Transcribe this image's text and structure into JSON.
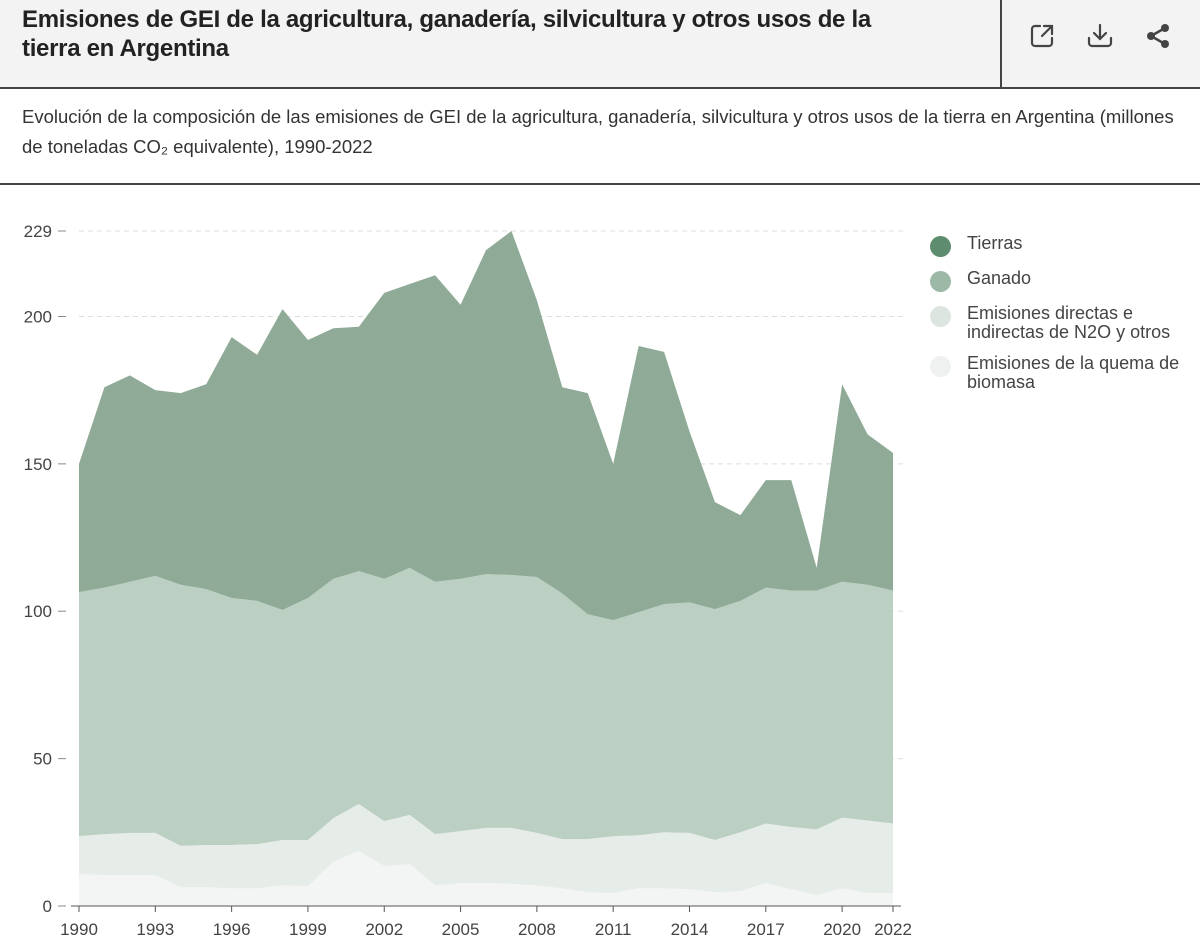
{
  "header": {
    "title": "Emisiones de GEI de la agricultura, ganadería, silvicultura y otros usos de la tierra en Argentina",
    "icons": [
      "external-link-icon",
      "download-icon",
      "share-icon"
    ]
  },
  "subtitle": "Evolución de la composición de las emisiones de GEI de la agricultura, ganadería, silvicultura y otros usos de la tierra en Argentina (millones de toneladas CO₂ equivalente), 1990-2022",
  "chart_data": {
    "type": "area",
    "stacked": true,
    "title": "Emisiones de GEI de la agricultura, ganadería, silvicultura y otros usos de la tierra en Argentina",
    "xlabel": "",
    "ylabel": "millones de toneladas CO₂ equivalente",
    "ylim": [
      0,
      229
    ],
    "xlim": [
      1990,
      2022
    ],
    "y_ticks": [
      0,
      50,
      100,
      150,
      200,
      229
    ],
    "x_ticks": [
      1990,
      1993,
      1996,
      1999,
      2002,
      2005,
      2008,
      2011,
      2014,
      2017,
      2020,
      2022
    ],
    "grid": true,
    "legend_position": "right",
    "x": [
      1990,
      1991,
      1992,
      1993,
      1994,
      1995,
      1996,
      1997,
      1998,
      1999,
      2000,
      2001,
      2002,
      2003,
      2004,
      2005,
      2006,
      2007,
      2008,
      2009,
      2010,
      2011,
      2012,
      2013,
      2014,
      2015,
      2016,
      2017,
      2018,
      2019,
      2020,
      2021,
      2022
    ],
    "series": [
      {
        "name": "Emisiones de la quema de biomasa",
        "color": "#eef1ef",
        "fill": "#f3f5f4",
        "values": [
          10.9,
          10.5,
          10.5,
          10.5,
          6.4,
          6.4,
          6,
          6,
          7,
          6.8,
          15,
          18.7,
          13.6,
          14.2,
          7,
          7.8,
          7.8,
          7.5,
          7,
          6,
          4.7,
          4.4,
          6,
          6,
          5.7,
          4.7,
          5,
          7.8,
          5.7,
          3.7,
          6,
          4.4,
          4.4
        ]
      },
      {
        "name": "Emisiones directas e indirectas de N2O y otros",
        "color": "#dde5e0",
        "fill": "#e6ece8",
        "values": [
          12.8,
          13.9,
          14.3,
          14.3,
          14,
          14.3,
          14.7,
          15,
          15.4,
          15.6,
          14.8,
          15.9,
          15.2,
          16.7,
          17.4,
          17.6,
          18.7,
          19,
          17.8,
          16.7,
          18,
          19.3,
          18,
          19,
          19.1,
          17.7,
          20,
          20.2,
          21.1,
          22.3,
          24,
          24.6,
          23.6
        ]
      },
      {
        "name": "Ganado",
        "color": "#9cb8a6",
        "fill": "#bccfc3",
        "values": [
          82.8,
          83.6,
          85.2,
          87.2,
          88.6,
          86.8,
          83.8,
          82.5,
          78,
          82.1,
          81.2,
          79,
          82.2,
          83.8,
          85.6,
          85.6,
          86.1,
          85.8,
          86.8,
          83.3,
          76.3,
          73.3,
          75.7,
          77.4,
          78.2,
          78.3,
          78.5,
          80,
          80.2,
          81,
          80,
          80,
          79
        ]
      },
      {
        "name": "Tierras",
        "color": "#5e8c6f",
        "fill": "#8fab98",
        "values": [
          43.5,
          68,
          70,
          63,
          65,
          69.5,
          88.5,
          83.5,
          102.1,
          87.5,
          85,
          82.9,
          97,
          96.3,
          104,
          93,
          109.9,
          116.7,
          93.9,
          70,
          75,
          53,
          90.3,
          85.6,
          58,
          36.3,
          29.1,
          36.5,
          37.5,
          7.7,
          67,
          51,
          46.7
        ]
      }
    ],
    "legend": [
      "Tierras",
      "Ganado",
      "Emisiones directas e indirectas de N2O y otros",
      "Emisiones de la quema de biomasa"
    ]
  }
}
